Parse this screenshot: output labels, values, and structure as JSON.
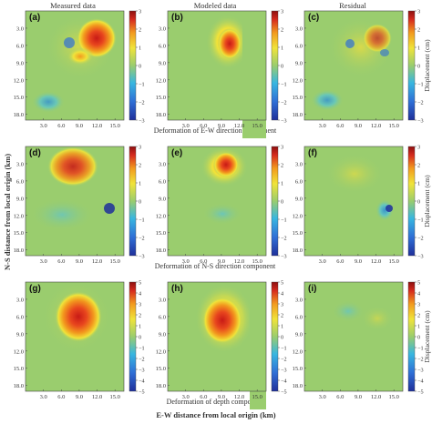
{
  "column_headers": [
    "Measured data",
    "Modeled data",
    "Residual"
  ],
  "panel_letters": [
    "(a)",
    "(b)",
    "(c)",
    "(d)",
    "(e)",
    "(f)",
    "(g)",
    "(h)",
    "(i)"
  ],
  "row_captions": [
    "Deformation of E-W direction component",
    "Deformation of N-S direction component",
    "Deformation of depth component"
  ],
  "y_axis_label": "N-S distance from local origin (km)",
  "x_axis_label": "E-W distance from local origin (km)",
  "colorbar_label": "Displacement (cm)",
  "x_ticks": [
    "3.0",
    "6.0",
    "9.0",
    "12.0",
    "15.0"
  ],
  "y_ticks": [
    "3.0",
    "6.0",
    "9.0",
    "12.0",
    "15.0",
    "18.0"
  ],
  "colorbar_ticks": {
    "row1": [
      "3",
      "2",
      "1",
      "0",
      "−1",
      "−2",
      "−3"
    ],
    "row2": [
      "3",
      "2",
      "1",
      "0",
      "−1",
      "−2",
      "−3"
    ],
    "row3": [
      "5",
      "4",
      "3",
      "2",
      "1",
      "0",
      "−1",
      "−2",
      "−3",
      "−4",
      "−5"
    ]
  },
  "colors": {
    "background_field": "#9acd6e",
    "colormap": [
      "#1f2f9a",
      "#2f6fd6",
      "#38b6e0",
      "#9acd6e",
      "#f0e33a",
      "#f29a1e",
      "#d62b1e",
      "#8e1010"
    ]
  }
}
